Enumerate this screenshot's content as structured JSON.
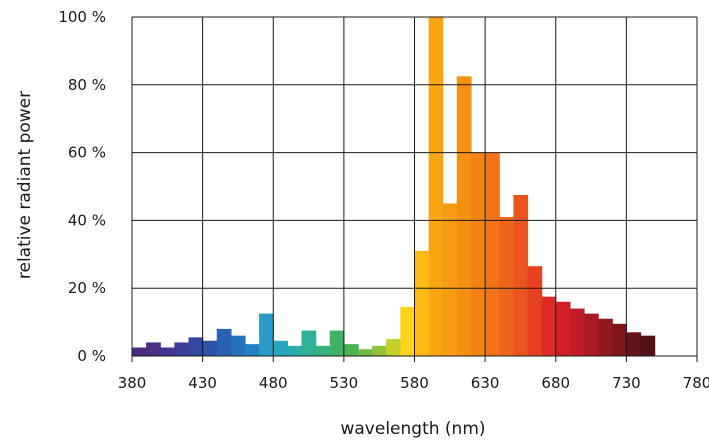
{
  "chart_data": {
    "type": "bar",
    "title": "",
    "xlabel": "wavelength (nm)",
    "ylabel": "relative radiant power",
    "xlim": [
      380,
      780
    ],
    "ylim": [
      0,
      100
    ],
    "grid": true,
    "x_ticks": [
      380,
      430,
      480,
      530,
      580,
      630,
      680,
      730,
      780
    ],
    "x_tick_labels": [
      "380",
      "430",
      "480",
      "530",
      "580",
      "630",
      "680",
      "730",
      "780"
    ],
    "y_ticks": [
      0,
      20,
      40,
      60,
      80,
      100
    ],
    "y_tick_labels": [
      "0 %",
      "20 %",
      "40 %",
      "60 %",
      "80 %",
      "100 %"
    ],
    "bin_width_nm": 10,
    "bins": [
      {
        "x": 380,
        "value": 2.5,
        "color": "#4b2a7a"
      },
      {
        "x": 390,
        "value": 4,
        "color": "#4a2f85"
      },
      {
        "x": 400,
        "value": 2.5,
        "color": "#44348f"
      },
      {
        "x": 410,
        "value": 4,
        "color": "#3b3d98"
      },
      {
        "x": 420,
        "value": 5.5,
        "color": "#3447a0"
      },
      {
        "x": 430,
        "value": 4.5,
        "color": "#2d52a8"
      },
      {
        "x": 440,
        "value": 8,
        "color": "#2a61b3"
      },
      {
        "x": 450,
        "value": 6,
        "color": "#2671bd"
      },
      {
        "x": 460,
        "value": 3.5,
        "color": "#2281c4"
      },
      {
        "x": 470,
        "value": 12.5,
        "color": "#2a9ac7"
      },
      {
        "x": 480,
        "value": 4.5,
        "color": "#29a5c0"
      },
      {
        "x": 490,
        "value": 3,
        "color": "#2aaeae"
      },
      {
        "x": 500,
        "value": 7.5,
        "color": "#2fb195"
      },
      {
        "x": 510,
        "value": 3,
        "color": "#37b27c"
      },
      {
        "x": 520,
        "value": 7.5,
        "color": "#3fb266"
      },
      {
        "x": 530,
        "value": 3.5,
        "color": "#4cb44f"
      },
      {
        "x": 540,
        "value": 2,
        "color": "#6dba45"
      },
      {
        "x": 550,
        "value": 3,
        "color": "#92c23b"
      },
      {
        "x": 560,
        "value": 5,
        "color": "#c4d12a"
      },
      {
        "x": 570,
        "value": 14.5,
        "color": "#fbd51a"
      },
      {
        "x": 580,
        "value": 31,
        "color": "#fcbc14"
      },
      {
        "x": 590,
        "value": 100,
        "color": "#f9a612"
      },
      {
        "x": 600,
        "value": 45,
        "color": "#f79c12"
      },
      {
        "x": 610,
        "value": 82.5,
        "color": "#f59012"
      },
      {
        "x": 620,
        "value": 60,
        "color": "#f38214"
      },
      {
        "x": 630,
        "value": 60,
        "color": "#f17518"
      },
      {
        "x": 640,
        "value": 41,
        "color": "#ee661b"
      },
      {
        "x": 650,
        "value": 47.5,
        "color": "#ea551e"
      },
      {
        "x": 660,
        "value": 26.5,
        "color": "#e54121"
      },
      {
        "x": 670,
        "value": 17.5,
        "color": "#dd2c24"
      },
      {
        "x": 680,
        "value": 16,
        "color": "#d21f27"
      },
      {
        "x": 690,
        "value": 14,
        "color": "#c01d28"
      },
      {
        "x": 700,
        "value": 12.5,
        "color": "#a91a24"
      },
      {
        "x": 710,
        "value": 11,
        "color": "#931720"
      },
      {
        "x": 720,
        "value": 9.5,
        "color": "#7d151b"
      },
      {
        "x": 730,
        "value": 7,
        "color": "#661317"
      },
      {
        "x": 740,
        "value": 6,
        "color": "#521114"
      }
    ]
  }
}
